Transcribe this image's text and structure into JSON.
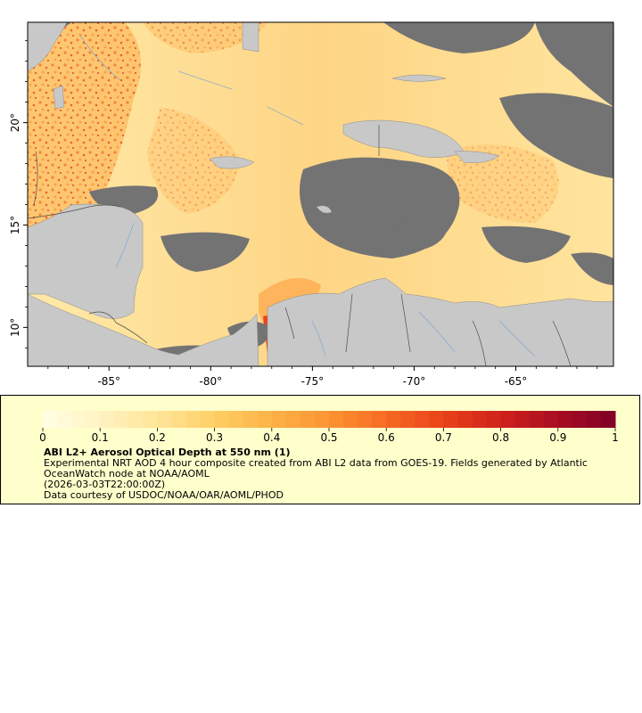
{
  "map": {
    "x_ticks": [
      "-85°",
      "-80°",
      "-75°",
      "-70°",
      "-65°"
    ],
    "x_tick_values": [
      -85,
      -80,
      -75,
      -70,
      -65
    ],
    "y_ticks": [
      "20°",
      "15°",
      "10°"
    ],
    "y_tick_values": [
      20,
      15,
      10
    ],
    "lon_range": [
      -89,
      -60.2
    ],
    "lat_range": [
      8.1,
      24.9
    ]
  },
  "colorbar": {
    "tick_labels": [
      "0",
      "0.1",
      "0.2",
      "0.3",
      "0.4",
      "0.5",
      "0.6",
      "0.7",
      "0.8",
      "0.9",
      "1"
    ],
    "range": [
      0,
      1
    ],
    "colors": [
      "#ffffe5",
      "#fff3c2",
      "#ffe599",
      "#fecf66",
      "#fdb246",
      "#fc9432",
      "#f76a23",
      "#e8421a",
      "#d0211b",
      "#a80d23",
      "#7f0026"
    ]
  },
  "legend": {
    "title": "ABI L2+ Aerosol Optical Depth at 550 nm (1)",
    "description": "Experimental NRT AOD 4 hour composite created from ABI L2 data from GOES-19. Fields generated by Atlantic OceanWatch node at NOAA/AOML",
    "timestamp": "(2026-03-03T22:00:00Z)",
    "credit": "Data courtesy of USDOC/NOAA/OAR/AOML/PHOD"
  },
  "colors": {
    "land": "#c8c8c8",
    "no_data": "#737373",
    "legend_bg": "#ffffcc"
  }
}
